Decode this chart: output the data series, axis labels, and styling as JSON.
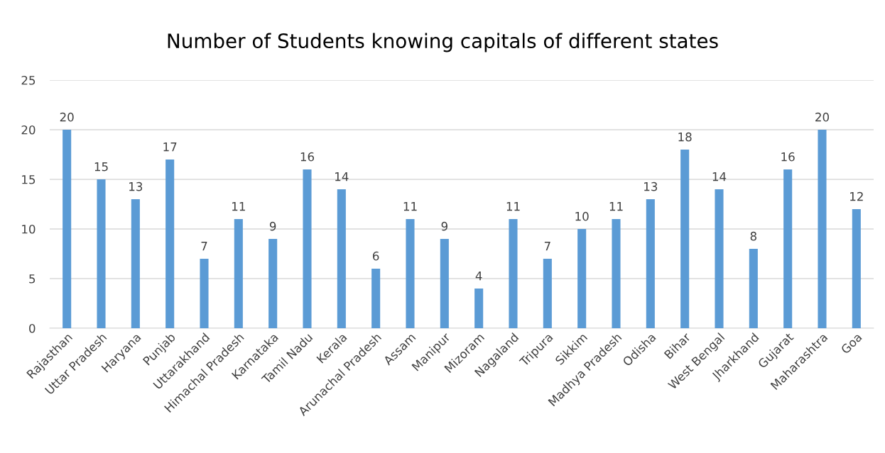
{
  "chart_data": {
    "type": "bar",
    "title": "Number of Students knowing capitals of different states",
    "categories": [
      "Rajasthan",
      "Uttar Pradesh",
      "Haryana",
      "Punjab",
      "Uttarakhand",
      "Himachal Pradesh",
      "Karnataka",
      "Tamil Nadu",
      "Kerala",
      "Arunachal Pradesh",
      "Assam",
      "Manipur",
      "Mizoram",
      "Nagaland",
      "Tripura",
      "Sikkim",
      "Madhya Pradesh",
      "Odisha",
      "Bihar",
      "West Bengal",
      "Jharkhand",
      "Gujarat",
      "Maharashtra",
      "Goa"
    ],
    "values": [
      20,
      15,
      13,
      17,
      7,
      11,
      9,
      16,
      14,
      6,
      11,
      9,
      4,
      11,
      7,
      10,
      11,
      13,
      18,
      14,
      8,
      16,
      20,
      12
    ],
    "color": "#5b9bd5",
    "ylim": [
      0,
      25
    ],
    "yticks": [
      0,
      5,
      10,
      15,
      20,
      25
    ],
    "grid": "y",
    "data_labels": true,
    "legend": false
  }
}
